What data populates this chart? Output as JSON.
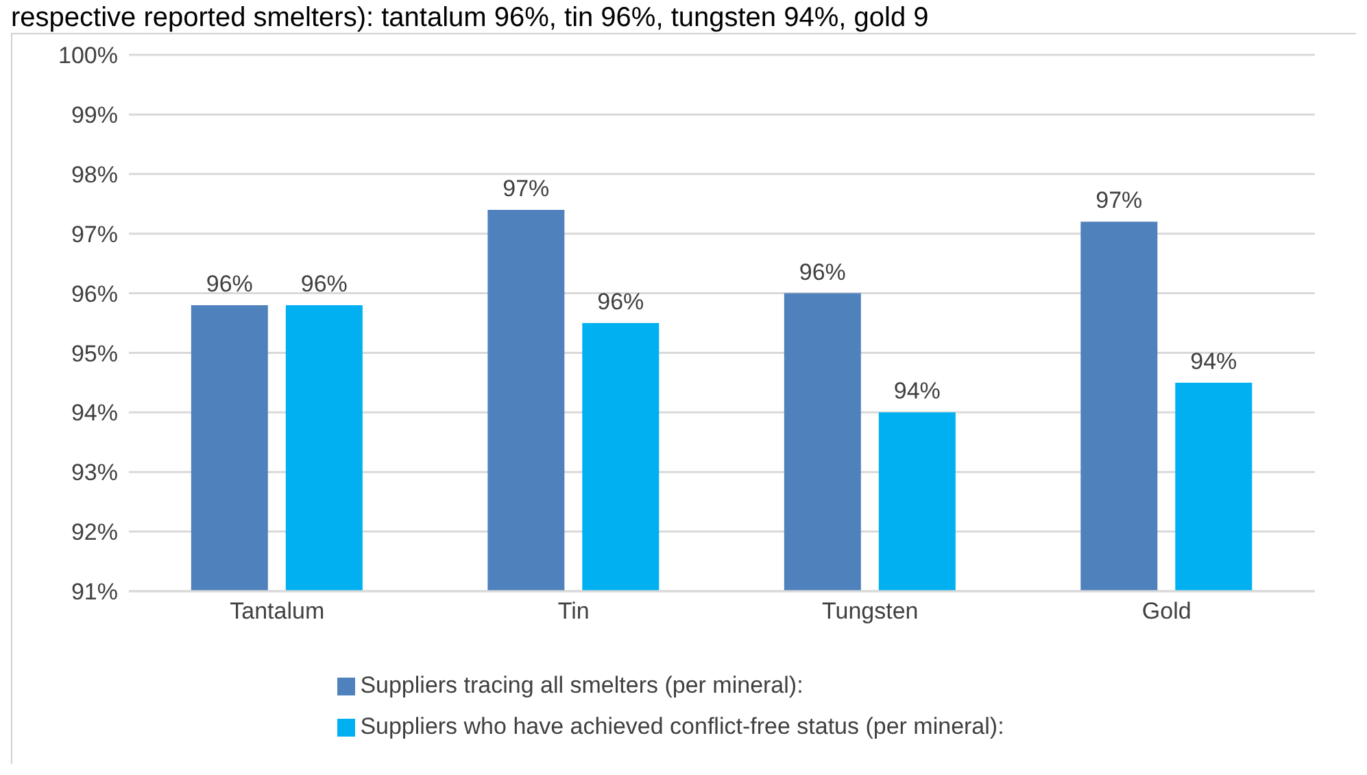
{
  "chart_data": {
    "type": "bar",
    "annotations": [
      "respective reported smelters): tantalum 96%, tin 96%, tungsten 94%, gold 9"
    ],
    "categories": [
      "Tantalum",
      "Tin",
      "Tungsten",
      "Gold"
    ],
    "series": [
      {
        "name": "Suppliers tracing all smelters (per mineral):",
        "color": "#4f81bd",
        "values": [
          95.8,
          97.4,
          96.0,
          97.2
        ],
        "value_labels": [
          "96%",
          "97%",
          "96%",
          "97%"
        ]
      },
      {
        "name": "Suppliers who have achieved conflict-free status (per mineral):",
        "color": "#00b0f0",
        "values": [
          95.8,
          95.5,
          94.0,
          94.5
        ],
        "value_labels": [
          "96%",
          "96%",
          "94%",
          "94%"
        ]
      }
    ],
    "ylim": [
      91,
      100
    ],
    "yticks": [
      {
        "value": 91,
        "label": "91%"
      },
      {
        "value": 92,
        "label": "92%"
      },
      {
        "value": 93,
        "label": "93%"
      },
      {
        "value": 94,
        "label": "94%"
      },
      {
        "value": 95,
        "label": "95%"
      },
      {
        "value": 96,
        "label": "96%"
      },
      {
        "value": 97,
        "label": "97%"
      },
      {
        "value": 98,
        "label": "98%"
      },
      {
        "value": 99,
        "label": "99%"
      },
      {
        "value": 100,
        "label": "100%"
      }
    ],
    "grid": "y",
    "legend": "bottom"
  }
}
